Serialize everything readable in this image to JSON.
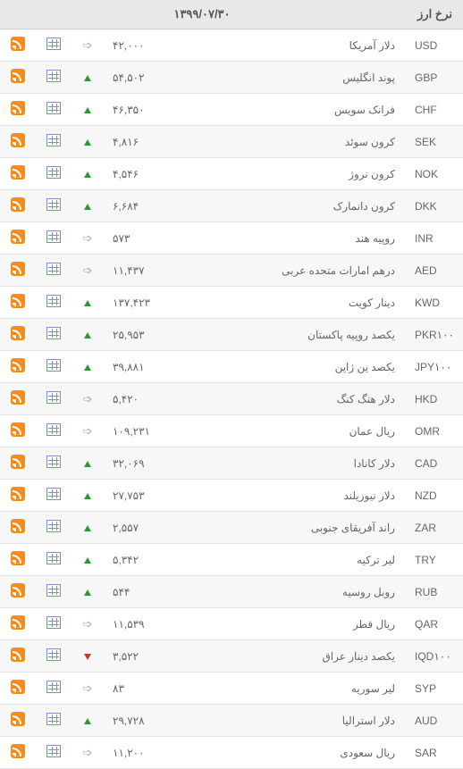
{
  "header": {
    "title": "نرخ ارز",
    "date": "۱۳۹۹/۰۷/۳۰"
  },
  "rows": [
    {
      "code": "USD",
      "name": "دلار آمریکا",
      "value": "۴۲,۰۰۰",
      "trend": "flat"
    },
    {
      "code": "GBP",
      "name": "پوند انگلیس",
      "value": "۵۴,۵۰۲",
      "trend": "up"
    },
    {
      "code": "CHF",
      "name": "فرانک سویس",
      "value": "۴۶,۳۵۰",
      "trend": "up"
    },
    {
      "code": "SEK",
      "name": "کرون سوئد",
      "value": "۴,۸۱۶",
      "trend": "up"
    },
    {
      "code": "NOK",
      "name": "کرون نروژ",
      "value": "۴,۵۴۶",
      "trend": "up"
    },
    {
      "code": "DKK",
      "name": "کرون دانمارک",
      "value": "۶,۶۸۴",
      "trend": "up"
    },
    {
      "code": "INR",
      "name": "روپیه هند",
      "value": "۵۷۳",
      "trend": "flat"
    },
    {
      "code": "AED",
      "name": "درهم امارات متحده عربی",
      "value": "۱۱,۴۳۷",
      "trend": "flat"
    },
    {
      "code": "KWD",
      "name": "دینار کویت",
      "value": "۱۳۷,۴۲۳",
      "trend": "up"
    },
    {
      "code": "PKR۱۰۰",
      "name": "یکصد روپیه پاکستان",
      "value": "۲۵,۹۵۳",
      "trend": "up"
    },
    {
      "code": "JPY۱۰۰",
      "name": "یکصد ین ژاپن",
      "value": "۳۹,۸۸۱",
      "trend": "up"
    },
    {
      "code": "HKD",
      "name": "دلار هنگ کنگ",
      "value": "۵,۴۲۰",
      "trend": "flat"
    },
    {
      "code": "OMR",
      "name": "ریال عمان",
      "value": "۱۰۹,۲۳۱",
      "trend": "flat"
    },
    {
      "code": "CAD",
      "name": "دلار کانادا",
      "value": "۳۲,۰۶۹",
      "trend": "up"
    },
    {
      "code": "NZD",
      "name": "دلار نیوزیلند",
      "value": "۲۷,۷۵۳",
      "trend": "up"
    },
    {
      "code": "ZAR",
      "name": "راند آفریقای جنوبی",
      "value": "۲,۵۵۷",
      "trend": "up"
    },
    {
      "code": "TRY",
      "name": "لیر ترکیه",
      "value": "۵,۳۴۲",
      "trend": "up"
    },
    {
      "code": "RUB",
      "name": "روبل روسیه",
      "value": "۵۴۴",
      "trend": "up"
    },
    {
      "code": "QAR",
      "name": "ریال قطر",
      "value": "۱۱,۵۳۹",
      "trend": "flat"
    },
    {
      "code": "IQD۱۰۰",
      "name": "یکصد دینار عراق",
      "value": "۳,۵۲۲",
      "trend": "down"
    },
    {
      "code": "SYP",
      "name": "لیر سوریه",
      "value": "۸۳",
      "trend": "flat"
    },
    {
      "code": "AUD",
      "name": "دلار استرالیا",
      "value": "۲۹,۷۲۸",
      "trend": "up"
    },
    {
      "code": "SAR",
      "name": "ریال سعودی",
      "value": "۱۱,۲۰۰",
      "trend": "flat"
    }
  ]
}
